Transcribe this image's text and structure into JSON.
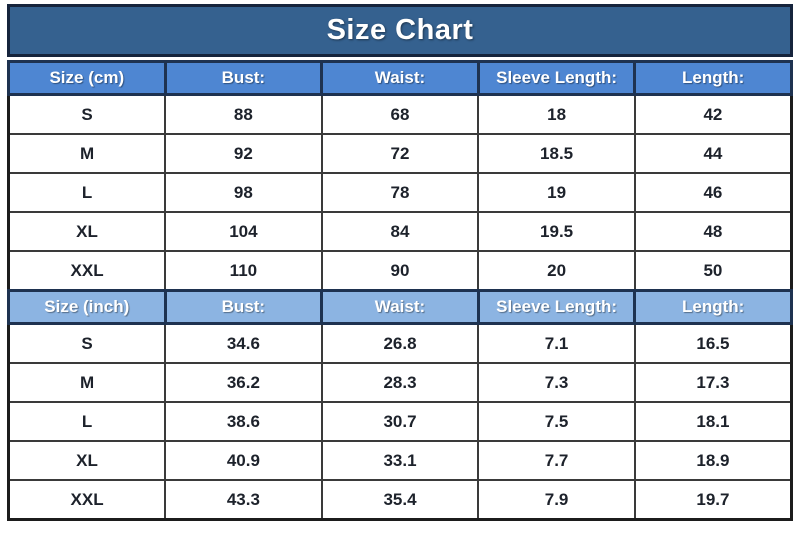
{
  "colors": {
    "title_bar_bg": "#35618F",
    "header_cm_bg": "#4E86D2",
    "header_inch_bg": "#8CB4E2",
    "border_dark": "#16243C",
    "header_border": "#1E3250",
    "row_border": "#3A3A3A",
    "header_text": "#FFFFFF",
    "cell_text": "#1D222B"
  },
  "chart_data": {
    "type": "table",
    "title": "Size Chart",
    "sections": [
      {
        "unit": "cm",
        "columns": [
          "Size (cm)",
          "Bust:",
          "Waist:",
          "Sleeve Length:",
          "Length:"
        ],
        "rows": [
          [
            "S",
            "88",
            "68",
            "18",
            "42"
          ],
          [
            "M",
            "92",
            "72",
            "18.5",
            "44"
          ],
          [
            "L",
            "98",
            "78",
            "19",
            "46"
          ],
          [
            "XL",
            "104",
            "84",
            "19.5",
            "48"
          ],
          [
            "XXL",
            "110",
            "90",
            "20",
            "50"
          ]
        ]
      },
      {
        "unit": "inch",
        "columns": [
          "Size (inch)",
          "Bust:",
          "Waist:",
          "Sleeve Length:",
          "Length:"
        ],
        "rows": [
          [
            "S",
            "34.6",
            "26.8",
            "7.1",
            "16.5"
          ],
          [
            "M",
            "36.2",
            "28.3",
            "7.3",
            "17.3"
          ],
          [
            "L",
            "38.6",
            "30.7",
            "7.5",
            "18.1"
          ],
          [
            "XL",
            "40.9",
            "33.1",
            "7.7",
            "18.9"
          ],
          [
            "XXL",
            "43.3",
            "35.4",
            "7.9",
            "19.7"
          ]
        ]
      }
    ]
  }
}
